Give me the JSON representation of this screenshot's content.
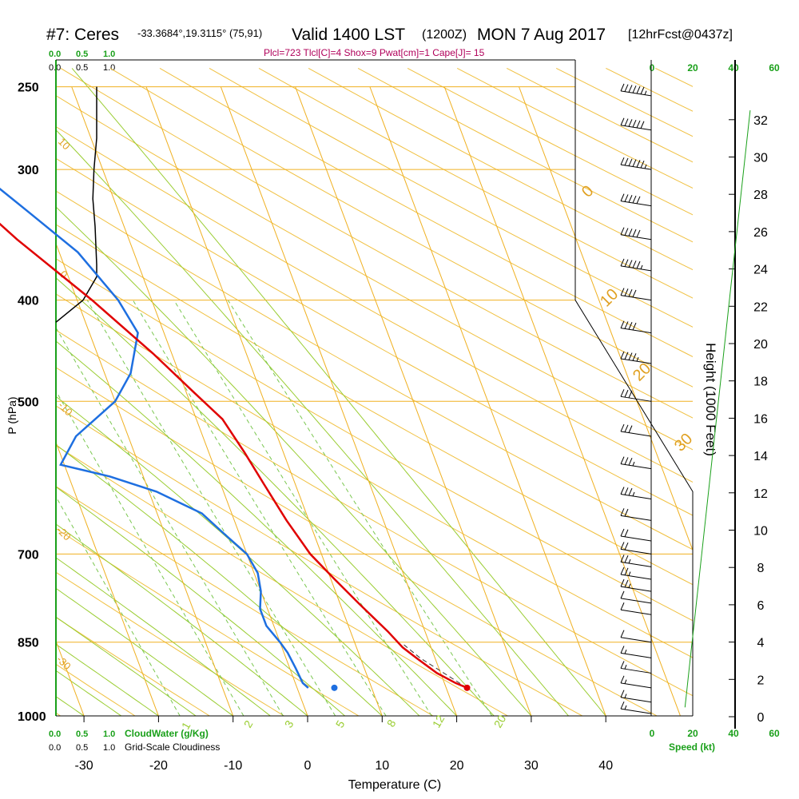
{
  "header": {
    "station": "#7: Ceres",
    "coords": "-33.3684°,19.3115° (75,91)",
    "valid": "Valid 1400 LST",
    "zulu": "(1200Z)",
    "date": "MON 7 Aug 2017",
    "fcst": "[12hrFcst@0437z]",
    "indices": "Plcl=723 Tlcl[C]=4 Shox=9 Pwat[cm]=1 Cape[J]= 15"
  },
  "colors": {
    "isobar": "#f0b020",
    "dry_adiabat": "#f0c040",
    "moist_adiabat": "#9acd32",
    "mixing_ratio": "#7ac74f",
    "temperature": "#e00000",
    "dewpoint": "#1e6fe0",
    "height": "#1aa01a",
    "cloud": "#000000"
  },
  "labels": {
    "xlabel": "Temperature (C)",
    "ylabel": "P (hPa)",
    "height_label": "Height (1000 Feet)",
    "cloudwater_label": "CloudWater (g/Kg)",
    "cloudiness_label": "Grid-Scale Cloudiness",
    "speed_label": "Speed (kt)"
  },
  "scales": {
    "cloudwater_ticks": [
      "0.0",
      "0.5",
      "1.0"
    ],
    "cloudiness_ticks": [
      "0.0",
      "0.5",
      "1.0"
    ],
    "speed_ticks": [
      "0",
      "20",
      "40",
      "60"
    ]
  },
  "chart_data": {
    "type": "line",
    "title": "Skew-T log-P sounding",
    "pressure_ticks": [
      250,
      300,
      400,
      500,
      700,
      850,
      1000
    ],
    "temperature_ticks": [
      -30,
      -20,
      -10,
      0,
      10,
      20,
      30,
      40
    ],
    "height_ticks": [
      0,
      2,
      4,
      6,
      8,
      10,
      12,
      14,
      16,
      18,
      20,
      22,
      24,
      26,
      28,
      30,
      32
    ],
    "mixing_ratio_labels": [
      "1",
      "2",
      "3",
      "5",
      "8",
      "12",
      "20"
    ],
    "moist_adiabat_labels": [
      "0",
      "10",
      "20",
      "30"
    ],
    "dry_adiabat_labels": [
      "10",
      "0",
      "-10",
      "-20",
      "-30"
    ],
    "series": [
      {
        "name": "temperature",
        "points": [
          [
            940,
            22.8
          ],
          [
            930,
            21.5
          ],
          [
            910,
            19.5
          ],
          [
            880,
            17.5
          ],
          [
            860,
            16.2
          ],
          [
            830,
            15.0
          ],
          [
            780,
            12.5
          ],
          [
            740,
            10.5
          ],
          [
            700,
            8.5
          ],
          [
            650,
            7.0
          ],
          [
            600,
            5.8
          ],
          [
            560,
            4.8
          ],
          [
            520,
            3.5
          ],
          [
            490,
            1.0
          ],
          [
            450,
            -2.5
          ],
          [
            400,
            -8.0
          ],
          [
            350,
            -15.0
          ],
          [
            320,
            -19.0
          ],
          [
            300,
            -22.5
          ],
          [
            280,
            -27.0
          ],
          [
            265,
            -30.5
          ]
        ]
      },
      {
        "name": "dewpoint",
        "points": [
          [
            940,
            1.5
          ],
          [
            930,
            1.0
          ],
          [
            900,
            0.8
          ],
          [
            870,
            0.5
          ],
          [
            850,
            0.0
          ],
          [
            820,
            -1.0
          ],
          [
            790,
            -1.0
          ],
          [
            760,
            0.0
          ],
          [
            730,
            0.5
          ],
          [
            700,
            0.0
          ],
          [
            670,
            -2.0
          ],
          [
            640,
            -4.0
          ],
          [
            610,
            -9.0
          ],
          [
            590,
            -14.5
          ],
          [
            575,
            -20.5
          ],
          [
            540,
            -17.0
          ],
          [
            500,
            -10.0
          ],
          [
            470,
            -6.5
          ],
          [
            430,
            -3.5
          ],
          [
            400,
            -4.5
          ],
          [
            360,
            -7.5
          ],
          [
            330,
            -12.0
          ],
          [
            300,
            -17.0
          ],
          [
            270,
            -21.5
          ],
          [
            252,
            -24.0
          ]
        ]
      },
      {
        "name": "cloudiness",
        "points": [
          [
            250,
            0.75
          ],
          [
            260,
            0.75
          ],
          [
            280,
            0.75
          ],
          [
            300,
            0.7
          ],
          [
            320,
            0.68
          ],
          [
            340,
            0.72
          ],
          [
            370,
            0.75
          ],
          [
            380,
            0.75
          ],
          [
            400,
            0.5
          ],
          [
            420,
            0.0
          ]
        ]
      },
      {
        "name": "height",
        "points": [
          [
            1000,
            0.5
          ],
          [
            950,
            1.2
          ],
          [
            900,
            3.0
          ],
          [
            850,
            4.5
          ],
          [
            800,
            6.5
          ],
          [
            750,
            8.5
          ],
          [
            700,
            10.0
          ],
          [
            650,
            12.0
          ],
          [
            600,
            14.0
          ],
          [
            550,
            16.0
          ],
          [
            500,
            18.5
          ],
          [
            450,
            20.5
          ],
          [
            400,
            23.0
          ],
          [
            350,
            26.0
          ],
          [
            300,
            29.5
          ],
          [
            260,
            32.5
          ]
        ]
      }
    ],
    "wind_barbs": [
      {
        "p": 255,
        "spd": 65
      },
      {
        "p": 275,
        "spd": 60
      },
      {
        "p": 300,
        "spd": 55
      },
      {
        "p": 325,
        "spd": 50
      },
      {
        "p": 350,
        "spd": 50
      },
      {
        "p": 375,
        "spd": 45
      },
      {
        "p": 400,
        "spd": 40
      },
      {
        "p": 430,
        "spd": 40
      },
      {
        "p": 460,
        "spd": 35
      },
      {
        "p": 500,
        "spd": 30
      },
      {
        "p": 540,
        "spd": 30
      },
      {
        "p": 580,
        "spd": 25
      },
      {
        "p": 620,
        "spd": 25
      },
      {
        "p": 650,
        "spd": 20
      },
      {
        "p": 680,
        "spd": 20
      },
      {
        "p": 700,
        "spd": 20
      },
      {
        "p": 720,
        "spd": 15
      },
      {
        "p": 740,
        "spd": 15
      },
      {
        "p": 760,
        "spd": 15
      },
      {
        "p": 780,
        "spd": 10
      },
      {
        "p": 800,
        "spd": 10
      },
      {
        "p": 850,
        "spd": 10
      },
      {
        "p": 880,
        "spd": 5
      },
      {
        "p": 910,
        "spd": 5
      },
      {
        "p": 940,
        "spd": 5
      },
      {
        "p": 970,
        "spd": 5
      },
      {
        "p": 995,
        "spd": 5
      }
    ]
  }
}
